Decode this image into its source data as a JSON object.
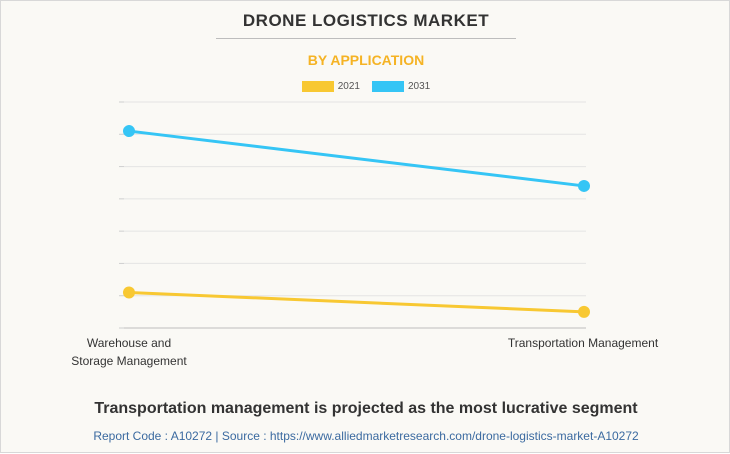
{
  "header": {
    "title": "DRONE LOGISTICS MARKET",
    "subtitle": "BY APPLICATION"
  },
  "colors": {
    "accent": "#f5b324",
    "series_2021": "#f8c832",
    "series_2031": "#35c5f5",
    "grid": "#e4e4e4",
    "footer": "#3b6aa0"
  },
  "chart_data": {
    "type": "line",
    "title": "DRONE LOGISTICS MARKET",
    "subtitle": "BY APPLICATION",
    "categories": [
      [
        "Warehouse and",
        "Storage Management"
      ],
      [
        "Transportation Management"
      ]
    ],
    "series": [
      {
        "name": "2021",
        "values": [
          1.1,
          0.5
        ]
      },
      {
        "name": "2031",
        "values": [
          6.1,
          4.4
        ]
      }
    ],
    "ylim": [
      0,
      7
    ],
    "grid": true,
    "y_tick_labels_shown": false,
    "legend": "top-center"
  },
  "footer": {
    "headline": "Transportation management is projected as the most lucrative segment",
    "source": "Report Code : A10272  |  Source : https://www.alliedmarketresearch.com/drone-logistics-market-A10272"
  }
}
